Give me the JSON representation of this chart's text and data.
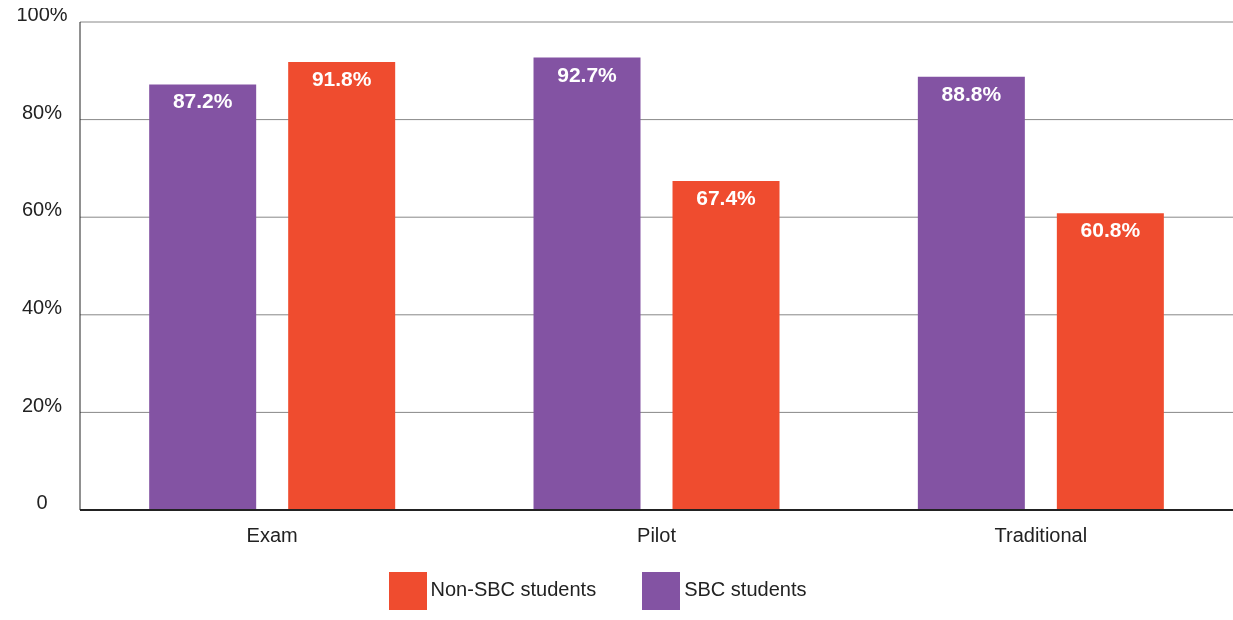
{
  "chart_data": {
    "type": "bar",
    "categories": [
      "Exam",
      "Pilot",
      "Traditional"
    ],
    "series": [
      {
        "name": "SBC students",
        "color": "#8353a3",
        "values": [
          87.2,
          92.7,
          88.8
        ],
        "value_labels": [
          "87.2%",
          "92.7%",
          "88.8%"
        ]
      },
      {
        "name": "Non-SBC students",
        "color": "#ef4c2f",
        "values": [
          91.8,
          67.4,
          60.8
        ],
        "value_labels": [
          "91.8%",
          "67.4%",
          "60.8%"
        ]
      }
    ],
    "ylim": [
      0,
      100
    ],
    "yticks": [
      0,
      {
        "value": 20,
        "label": "20%"
      },
      {
        "value": 40,
        "label": "40%"
      },
      {
        "value": 60,
        "label": "60%"
      },
      {
        "value": 80,
        "label": "80%"
      },
      {
        "value": 100,
        "label": "100%"
      }
    ],
    "grid": "y",
    "legend": "bottom"
  }
}
